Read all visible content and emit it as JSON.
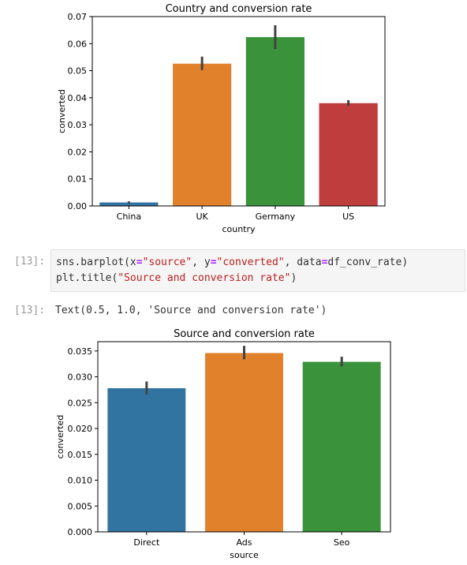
{
  "notebook": {
    "cell13_prompt": "[13]:",
    "cell13_code_line1": {
      "a": "sns.barplot(x",
      "b": "=",
      "c": "\"source\"",
      "d": ", y",
      "e": "=",
      "f": "\"converted\"",
      "g": ", data",
      "h": "=",
      "i": "df_conv_rate)"
    },
    "cell13_code_line2": {
      "a": "plt.title(",
      "b": "\"Source and conversion rate\"",
      "c": ")"
    },
    "out13_prompt": "[13]:",
    "out13_text": "Text(0.5, 1.0, 'Source and conversion rate')"
  },
  "chart_data": [
    {
      "type": "bar",
      "title": "Country and conversion rate",
      "xlabel": "country",
      "ylabel": "converted",
      "categories": [
        "China",
        "UK",
        "Germany",
        "US"
      ],
      "values": [
        0.0013,
        0.0526,
        0.0624,
        0.038
      ],
      "error_low": [
        0.0009,
        0.0502,
        0.058,
        0.037
      ],
      "error_high": [
        0.0017,
        0.0552,
        0.0668,
        0.0391
      ],
      "colors": [
        "#3274a1",
        "#e1812c",
        "#3a923a",
        "#c03d3e"
      ],
      "ylim": [
        0,
        0.07
      ],
      "yticks": [
        "0.00",
        "0.01",
        "0.02",
        "0.03",
        "0.04",
        "0.05",
        "0.06",
        "0.07"
      ]
    },
    {
      "type": "bar",
      "title": "Source and conversion rate",
      "xlabel": "source",
      "ylabel": "converted",
      "categories": [
        "Direct",
        "Ads",
        "Seo"
      ],
      "values": [
        0.0278,
        0.0346,
        0.0329
      ],
      "error_low": [
        0.0266,
        0.0334,
        0.032
      ],
      "error_high": [
        0.0291,
        0.036,
        0.0339
      ],
      "colors": [
        "#3274a1",
        "#e1812c",
        "#3a923a"
      ],
      "ylim": [
        0,
        0.0368
      ],
      "yticks": [
        "0.000",
        "0.005",
        "0.010",
        "0.015",
        "0.020",
        "0.025",
        "0.030",
        "0.035"
      ]
    }
  ]
}
